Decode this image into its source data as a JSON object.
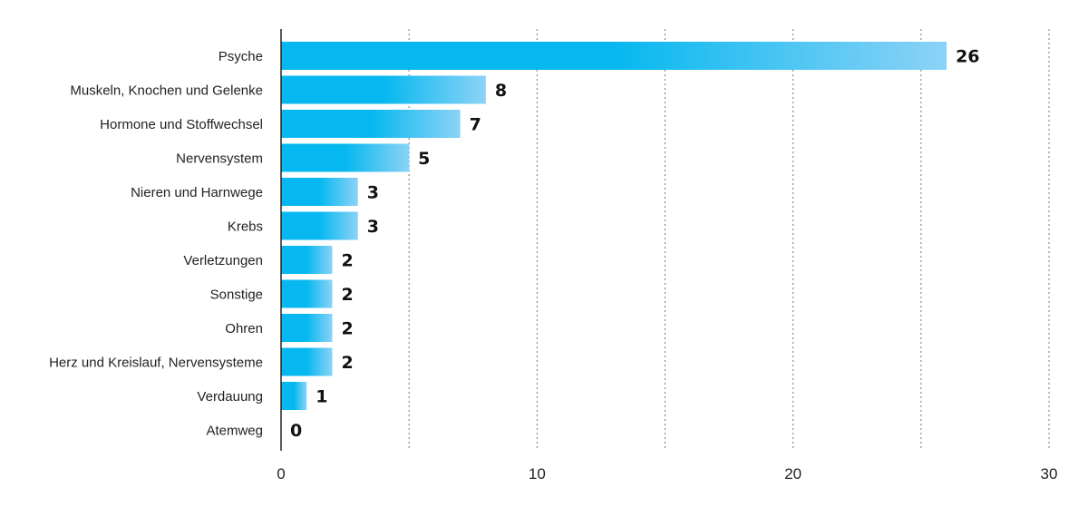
{
  "chart_data": {
    "type": "bar",
    "orientation": "horizontal",
    "title": "",
    "xlabel": "",
    "ylabel": "",
    "categories": [
      "Psyche",
      "Muskeln, Knochen und Gelenke",
      "Hormone und Stoffwechsel",
      "Nervensystem",
      "Nieren und Harnwege",
      "Krebs",
      "Verletzungen",
      "Sonstige",
      "Ohren",
      "Herz und Kreislauf, Nervensysteme",
      "Verdauung",
      "Atemweg"
    ],
    "values": [
      26,
      8,
      7,
      5,
      3,
      3,
      2,
      2,
      2,
      2,
      1,
      0
    ],
    "value_labels": [
      "26",
      "8",
      "7",
      "5",
      "3",
      "3",
      "2",
      "2",
      "2",
      "2",
      "1",
      "0"
    ],
    "xlim": [
      0,
      30
    ],
    "x_ticks": [
      0,
      10,
      20,
      30
    ],
    "x_tick_labels": [
      "0",
      "10",
      "20",
      "30"
    ],
    "grid": true,
    "grid_minor_step": 5,
    "legend": "none",
    "colors": {
      "bar_start": "#06b8ef",
      "bar_end": "#8dd2f6",
      "text": "#222222",
      "value_text": "#111111",
      "grid": "#777777"
    }
  }
}
